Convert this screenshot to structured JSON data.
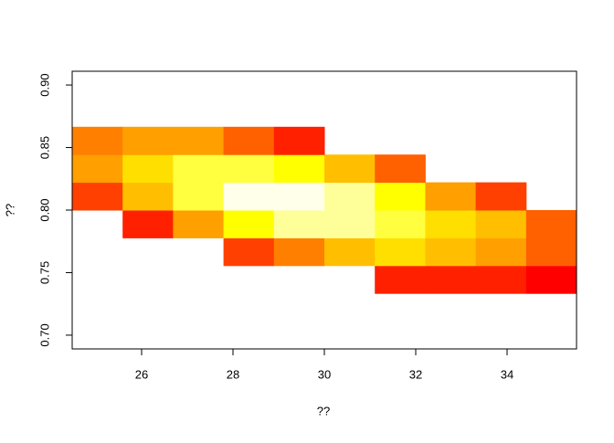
{
  "chart_data": {
    "type": "heatmap",
    "xlabel": "??",
    "ylabel": "??",
    "x": [
      25.032,
      26.136,
      27.24,
      28.344,
      29.448,
      30.552,
      31.656,
      32.76,
      33.864,
      34.968
    ],
    "y": [
      0.7445,
      0.7667,
      0.7889,
      0.8111,
      0.8333,
      0.8555
    ],
    "z": [
      [
        null,
        null,
        null,
        null,
        null,
        null,
        1,
        1,
        1,
        0
      ],
      [
        null,
        null,
        null,
        2,
        4,
        6,
        7,
        6,
        5,
        3
      ],
      [
        null,
        1,
        5,
        8,
        10,
        10,
        9,
        7,
        6,
        3
      ],
      [
        2,
        6,
        9,
        11,
        11,
        10,
        8,
        5,
        2,
        null
      ],
      [
        5,
        7,
        9,
        9,
        8,
        6,
        3,
        null,
        null,
        null
      ],
      [
        4,
        5,
        5,
        3,
        1,
        null,
        null,
        null,
        null,
        null
      ]
    ],
    "zlim": [
      0,
      11
    ],
    "palette": [
      "#FF0000",
      "#FF2000",
      "#FF4000",
      "#FF6000",
      "#FF8000",
      "#FF9F00",
      "#FFBF00",
      "#FFDF00",
      "#FFFF00",
      "#FFFF40",
      "#FFFF9A",
      "#FFFFEA"
    ],
    "xlim": [
      24.48,
      35.52
    ],
    "ylim": [
      0.689,
      0.911
    ],
    "xticks": [
      26,
      28,
      30,
      32,
      34
    ],
    "yticks": [
      {
        "value": 0.7,
        "label": "0.70"
      },
      {
        "value": 0.75,
        "label": "0.75"
      },
      {
        "value": 0.8,
        "label": "0.80"
      },
      {
        "value": 0.85,
        "label": "0.85"
      },
      {
        "value": 0.9,
        "label": "0.90"
      }
    ]
  }
}
